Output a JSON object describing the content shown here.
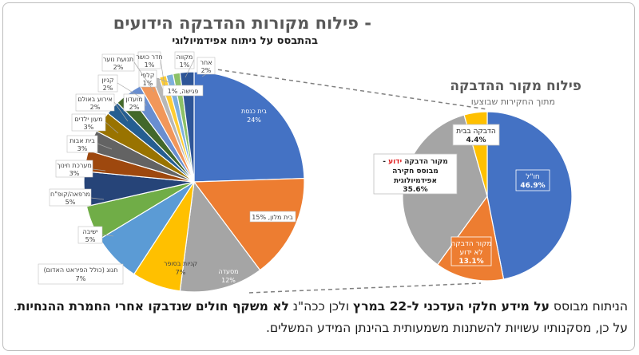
{
  "title": {
    "line1": "פילוח מקורות ההדבקה הידועים -",
    "line2": "בהתבסס על ניתוח אפידמיולוגי"
  },
  "right_title": {
    "line1": "פילוח מקור ההדבקה",
    "line2": "מתוך החקירות שבוצעו"
  },
  "chart_data": [
    {
      "type": "pie",
      "title": "פילוח מקורות ההדבקה הידועים - בהתבסס על ניתוח אפידמיולוגי",
      "slices": [
        {
          "label": "בית כנסת",
          "value": 24,
          "color": "#4472C4"
        },
        {
          "label": "בית מלון",
          "value": 15,
          "color": "#ED7D31"
        },
        {
          "label": "מסעדה",
          "value": 12,
          "color": "#A5A5A5"
        },
        {
          "label": "קניות בסופר",
          "value": 7,
          "color": "#FFC000"
        },
        {
          "label": "חגוג (כולל הפיראט האדום)",
          "value": 7,
          "color": "#5B9BD5"
        },
        {
          "label": "ישיבה",
          "value": 5,
          "color": "#70AD47"
        },
        {
          "label": "מרפאה/קופ\"ח",
          "value": 5,
          "color": "#264478"
        },
        {
          "label": "מערכת חינוך",
          "value": 3,
          "color": "#9E480E"
        },
        {
          "label": "בית אבות",
          "value": 3,
          "color": "#636363"
        },
        {
          "label": "מעון ילדים",
          "value": 3,
          "color": "#997300"
        },
        {
          "label": "אירוע באולם",
          "value": 2,
          "color": "#255E91"
        },
        {
          "label": "מועדון",
          "value": 2,
          "color": "#43682B"
        },
        {
          "label": "קניון",
          "value": 2,
          "color": "#698ED0"
        },
        {
          "label": "תנועת נוער",
          "value": 2,
          "color": "#F1975A"
        },
        {
          "label": "חדר כושר",
          "value": 1,
          "color": "#B7B7B7"
        },
        {
          "label": "קלפי",
          "value": 1,
          "color": "#FFCD33"
        },
        {
          "label": "פגישה",
          "value": 1,
          "color": "#7CAFDD"
        },
        {
          "label": "מקווה",
          "value": 1,
          "color": "#8CC168"
        },
        {
          "label": "אחר",
          "value": 2,
          "color": "#2E5597"
        }
      ]
    },
    {
      "type": "pie",
      "title": "פילוח מקור ההדבקה",
      "subtitle": "מתוך החקירות שבוצעו",
      "slices": [
        {
          "label": "חו\"ל",
          "value": 46.9,
          "color": "#4472C4"
        },
        {
          "label": "מקור הדבקה לא ידוע",
          "value": 13.1,
          "color": "#ED7D31"
        },
        {
          "label": "מקור הדבקה ידוע - מבוסס חקירה אפידמיולוגית",
          "value": 35.6,
          "color": "#A5A5A5"
        },
        {
          "label": "הדבקה בבית",
          "value": 4.4,
          "color": "#FFC000"
        }
      ]
    }
  ],
  "left_labels": {
    "synagogue": [
      "בית כנסת",
      "24%"
    ],
    "hotel": [
      "בית מלון, 15%"
    ],
    "restaurant": [
      "מסעדה",
      "12%"
    ],
    "supermarket": [
      "קניות בסופר",
      "7%"
    ],
    "hagag": [
      "חגוג (כולל הפיראט האדום)",
      "7%"
    ],
    "yeshiva": [
      "ישיבה",
      "5%"
    ],
    "clinic": [
      "מרפאה/קופ\"ח",
      "5%"
    ],
    "education": [
      "מערכת חינוך",
      "3%"
    ],
    "nursing": [
      "בית אבות",
      "3%"
    ],
    "daycare": [
      "מעון ילדים",
      "3%"
    ],
    "hall": [
      "אירוע באולם",
      "2%"
    ],
    "club": [
      "מועדון",
      "2%"
    ],
    "mall": [
      "קניון",
      "2%"
    ],
    "youth": [
      "תנועת נוער",
      "2%"
    ],
    "gym": [
      "חדר כושר",
      "1%"
    ],
    "ballot": [
      "קלפי",
      "1%"
    ],
    "meeting": [
      "פגישה, 1%"
    ],
    "mikveh": [
      "מקווה",
      "1%"
    ],
    "other": [
      "אחר",
      "2%"
    ]
  },
  "right_labels": {
    "abroad": [
      "חו\"ל",
      "46.9%"
    ],
    "unknown": [
      "מקור הדבקה",
      "לא ידוע",
      "13.1%"
    ],
    "known_prefix": "מקור הדבקה ",
    "known_red": "ידוע",
    "known_suffix": " -",
    "known_rest": [
      "מבוסס חקירה",
      "אפידמיולוגית",
      "35.6%"
    ],
    "home": [
      "הדבקה בבית",
      "4.4%"
    ]
  },
  "footer": {
    "p1": "הניתוח מבוסס ",
    "b1": "על מידע חלקי העדכני ל-22 במרץ",
    "p2": " ולכן ככה\"נ ",
    "b2": "לא משקף חולים שנדבקו אחרי החמרת ההנחיות",
    "p3": ". על כן, מסקנותיו עשויות להשתנות משמעותית בהינתן המידע המשלים."
  }
}
